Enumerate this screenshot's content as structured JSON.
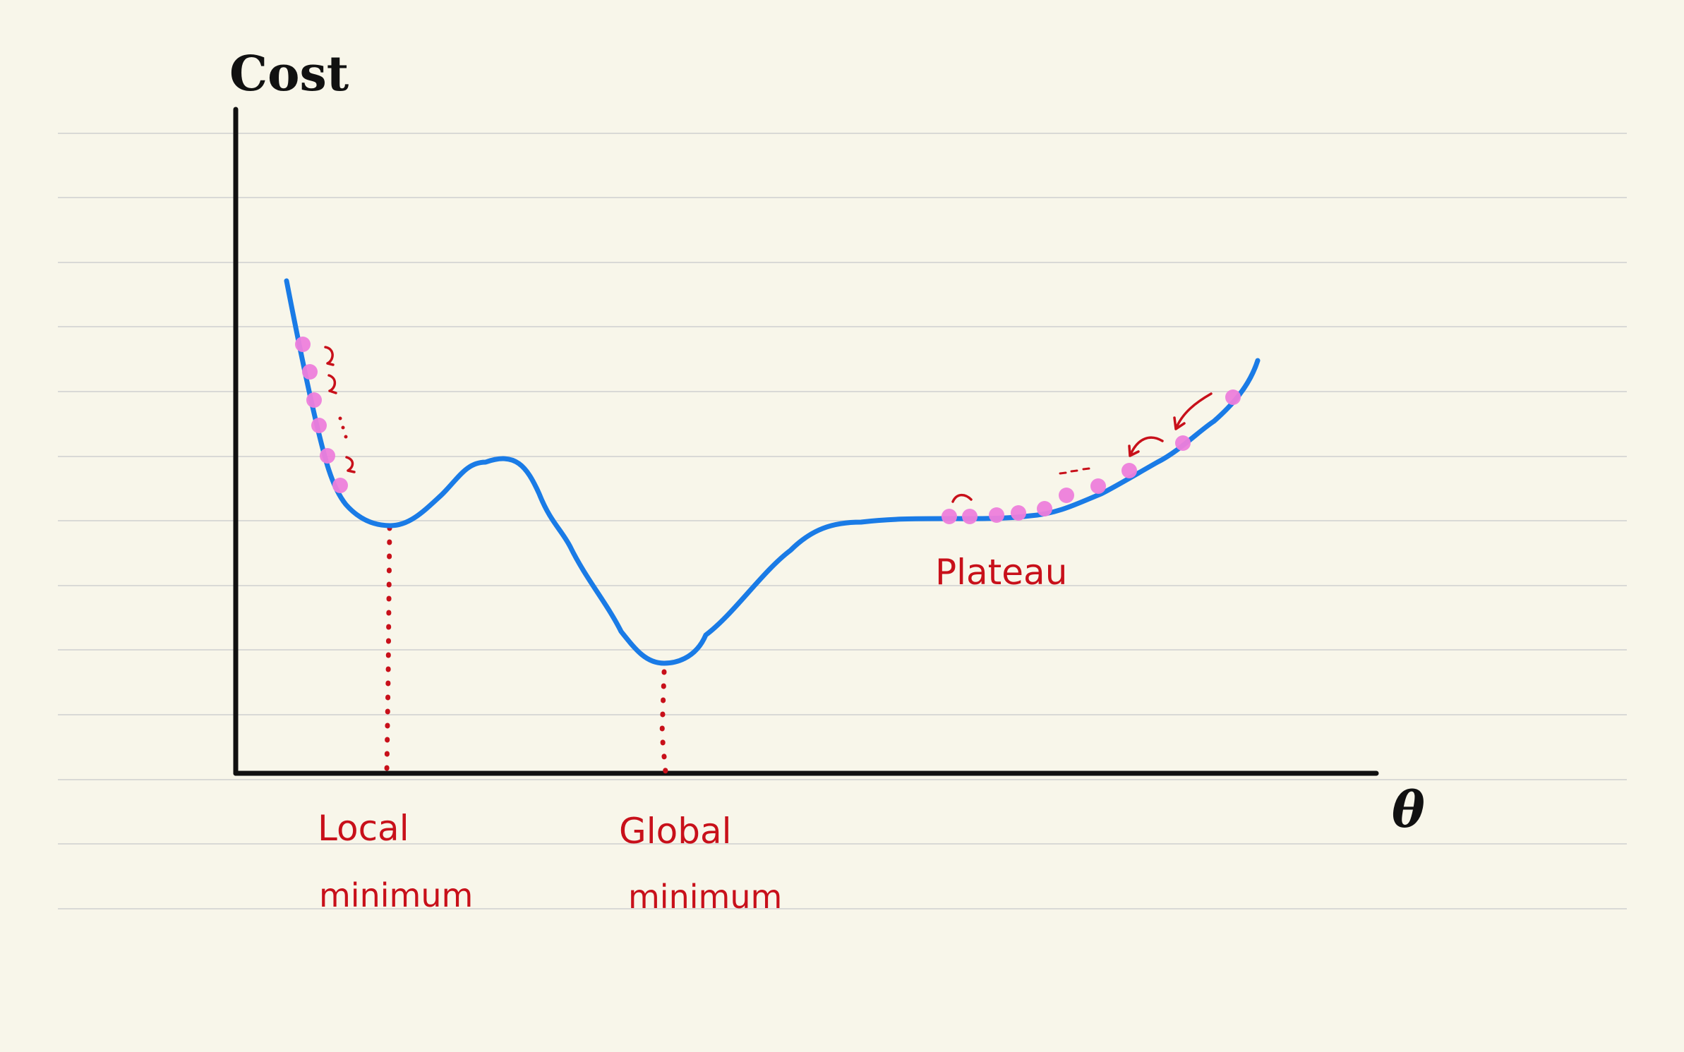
{
  "diagram": {
    "axes": {
      "y_label": "Cost",
      "x_label": "θ"
    },
    "labels": {
      "local_line1": "Local",
      "local_line2": "minimum",
      "global_line1": "Global",
      "global_line2": "minimum",
      "plateau": "Plateau"
    },
    "colors": {
      "background": "#f8f6ea",
      "ruled_line": "#d9d9d6",
      "axis": "#111111",
      "curve": "#1a7be6",
      "marker": "#ee7fdc",
      "annotation": "#c8101a"
    }
  }
}
